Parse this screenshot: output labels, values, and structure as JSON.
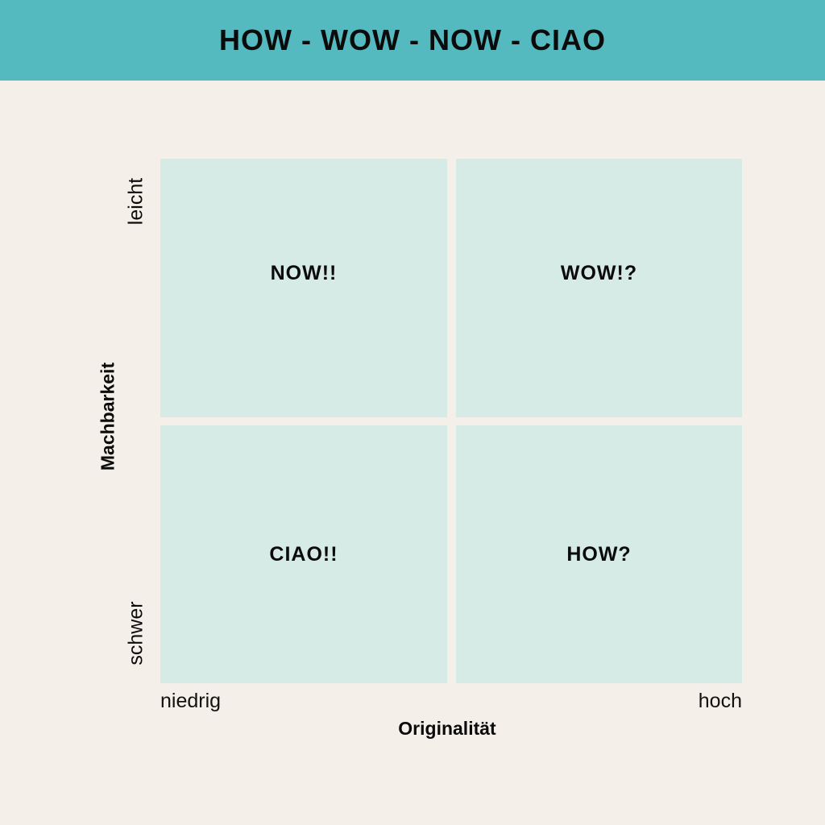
{
  "header": {
    "title": "HOW - WOW - NOW - CIAO"
  },
  "matrix": {
    "quadrants": {
      "top_left": "NOW!!",
      "top_right": "WOW!?",
      "bottom_left": "CIAO!!",
      "bottom_right": "HOW?"
    },
    "x_axis": {
      "title": "Originalität",
      "low": "niedrig",
      "high": "hoch"
    },
    "y_axis": {
      "title": "Machbarkeit",
      "high": "leicht",
      "low": "schwer"
    }
  },
  "colors": {
    "header_background": "#55b9c0",
    "page_background": "#f5efe9",
    "quadrant_fill": "#d6eae6",
    "text": "#0b0b0b"
  }
}
